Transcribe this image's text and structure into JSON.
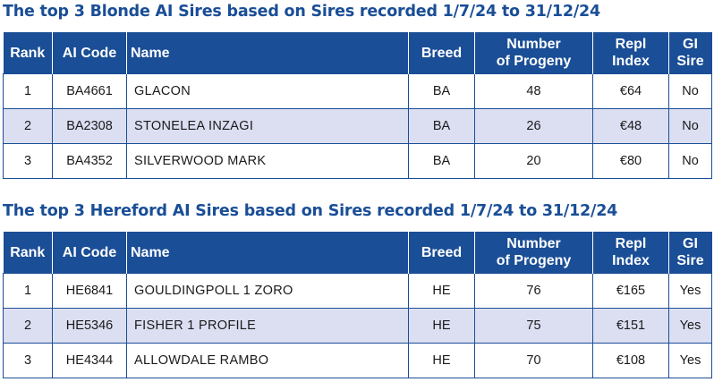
{
  "tables": [
    {
      "title": "The top 3 Blonde AI Sires based on Sires recorded 1/7/24 to 31/12/24",
      "headers": {
        "rank": "Rank",
        "ai_code": "AI Code",
        "name": "Name",
        "breed": "Breed",
        "progeny_1": "Number",
        "progeny_2": "of Progeny",
        "repl_1": "Repl",
        "repl_2": "Index",
        "gi_1": "GI",
        "gi_2": "Sire"
      },
      "rows": [
        {
          "rank": "1",
          "ai_code": "BA4661",
          "name": "GLACON",
          "breed": "BA",
          "progeny": "48",
          "repl_index": "€64",
          "gi_sire": "No"
        },
        {
          "rank": "2",
          "ai_code": "BA2308",
          "name": "STONELEA INZAGI",
          "breed": "BA",
          "progeny": "26",
          "repl_index": "€48",
          "gi_sire": "No"
        },
        {
          "rank": "3",
          "ai_code": "BA4352",
          "name": "SILVERWOOD MARK",
          "breed": "BA",
          "progeny": "20",
          "repl_index": "€80",
          "gi_sire": "No"
        }
      ]
    },
    {
      "title": "The top 3 Hereford AI Sires based on Sires recorded 1/7/24 to 31/12/24",
      "headers": {
        "rank": "Rank",
        "ai_code": "AI Code",
        "name": "Name",
        "breed": "Breed",
        "progeny_1": "Number",
        "progeny_2": "of Progeny",
        "repl_1": "Repl",
        "repl_2": "Index",
        "gi_1": "GI",
        "gi_2": "Sire"
      },
      "rows": [
        {
          "rank": "1",
          "ai_code": "HE6841",
          "name": "GOULDINGPOLL 1 ZORO",
          "breed": "HE",
          "progeny": "76",
          "repl_index": "€165",
          "gi_sire": "Yes"
        },
        {
          "rank": "2",
          "ai_code": "HE5346",
          "name": "FISHER 1 PROFILE",
          "breed": "HE",
          "progeny": "75",
          "repl_index": "€151",
          "gi_sire": "Yes"
        },
        {
          "rank": "3",
          "ai_code": "HE4344",
          "name": "ALLOWDALE RAMBO",
          "breed": "HE",
          "progeny": "70",
          "repl_index": "€108",
          "gi_sire": "Yes"
        }
      ]
    }
  ]
}
